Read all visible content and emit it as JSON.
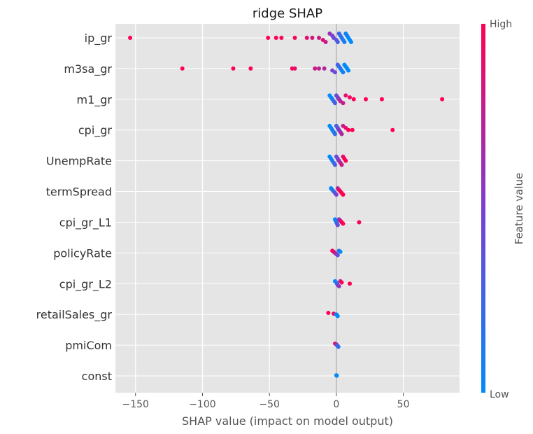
{
  "chart_data": {
    "type": "scatter",
    "subtype": "shap-beeswarm",
    "title": "ridge SHAP",
    "xlabel": "SHAP value (impact on model output)",
    "xlim": [
      -165,
      92
    ],
    "xticks": [
      -150,
      -100,
      -50,
      0,
      50
    ],
    "xtick_labels": [
      "−150",
      "−100",
      "−50",
      "0",
      "50"
    ],
    "colorbar": {
      "label": "Feature value",
      "high": "High",
      "low": "Low",
      "colors": {
        "low": "#008bfb",
        "mid": "#7b3fd1",
        "high": "#ff0052"
      }
    },
    "grid": true,
    "background": "#e5e5e5",
    "features": [
      {
        "name": "ip_gr",
        "points": [
          {
            "x": -154,
            "c": 1.0
          },
          {
            "x": -51,
            "c": 1.0
          },
          {
            "x": -45,
            "c": 1.0
          },
          {
            "x": -41,
            "c": 1.0
          },
          {
            "x": -31,
            "c": 0.95
          },
          {
            "x": -22,
            "c": 0.9
          },
          {
            "x": -18,
            "c": 0.85
          },
          {
            "x": -13,
            "c": 0.8
          },
          {
            "x": -10,
            "c": 0.85
          },
          {
            "x": -8,
            "c": 0.8
          },
          {
            "x": -5,
            "c": 0.6
          },
          {
            "x": -3,
            "c": 0.5
          },
          {
            "x": -2,
            "c": 0.45
          },
          {
            "x": 0,
            "c": 0.35
          },
          {
            "x": 1,
            "c": 0.3
          },
          {
            "x": 2,
            "c": 0.25
          },
          {
            "x": 3,
            "c": 0.2
          },
          {
            "x": 4,
            "c": 0.15
          },
          {
            "x": 5,
            "c": 0.1
          },
          {
            "x": 6,
            "c": 0.1
          },
          {
            "x": 7,
            "c": 0.05
          },
          {
            "x": 8,
            "c": 0.05
          },
          {
            "x": 9,
            "c": 0.0
          },
          {
            "x": 10,
            "c": 0.0
          },
          {
            "x": 11,
            "c": 0.0
          }
        ]
      },
      {
        "name": "m3sa_gr",
        "points": [
          {
            "x": -115,
            "c": 1.0
          },
          {
            "x": -77,
            "c": 1.0
          },
          {
            "x": -64,
            "c": 1.0
          },
          {
            "x": -33,
            "c": 0.95
          },
          {
            "x": -31,
            "c": 0.9
          },
          {
            "x": -16,
            "c": 0.8
          },
          {
            "x": -13,
            "c": 0.75
          },
          {
            "x": -9,
            "c": 0.7
          },
          {
            "x": -3,
            "c": 0.5
          },
          {
            "x": -1,
            "c": 0.4
          },
          {
            "x": 1,
            "c": 0.3
          },
          {
            "x": 2,
            "c": 0.2
          },
          {
            "x": 3,
            "c": 0.15
          },
          {
            "x": 4,
            "c": 0.1
          },
          {
            "x": 5,
            "c": 0.05
          },
          {
            "x": 6,
            "c": 0.0
          },
          {
            "x": 7,
            "c": 0.0
          },
          {
            "x": 8,
            "c": 0.0
          },
          {
            "x": 9,
            "c": 0.0
          }
        ]
      },
      {
        "name": "m1_gr",
        "points": [
          {
            "x": -5,
            "c": 0.0
          },
          {
            "x": -4,
            "c": 0.0
          },
          {
            "x": -3,
            "c": 0.1
          },
          {
            "x": -2,
            "c": 0.2
          },
          {
            "x": -1,
            "c": 0.3
          },
          {
            "x": 0,
            "c": 0.4
          },
          {
            "x": 1,
            "c": 0.5
          },
          {
            "x": 2,
            "c": 0.6
          },
          {
            "x": 3,
            "c": 0.7
          },
          {
            "x": 5,
            "c": 0.8
          },
          {
            "x": 7,
            "c": 0.9
          },
          {
            "x": 10,
            "c": 0.95
          },
          {
            "x": 13,
            "c": 1.0
          },
          {
            "x": 22,
            "c": 1.0
          },
          {
            "x": 34,
            "c": 1.0
          },
          {
            "x": 79,
            "c": 1.0
          }
        ]
      },
      {
        "name": "cpi_gr",
        "points": [
          {
            "x": -5,
            "c": 0.0
          },
          {
            "x": -4,
            "c": 0.0
          },
          {
            "x": -3,
            "c": 0.1
          },
          {
            "x": -2,
            "c": 0.1
          },
          {
            "x": -1,
            "c": 0.2
          },
          {
            "x": 0,
            "c": 0.3
          },
          {
            "x": 1,
            "c": 0.4
          },
          {
            "x": 2,
            "c": 0.5
          },
          {
            "x": 3,
            "c": 0.6
          },
          {
            "x": 4,
            "c": 0.7
          },
          {
            "x": 5,
            "c": 0.8
          },
          {
            "x": 7,
            "c": 0.9
          },
          {
            "x": 9,
            "c": 1.0
          },
          {
            "x": 12,
            "c": 1.0
          },
          {
            "x": 42,
            "c": 1.0
          }
        ]
      },
      {
        "name": "UnempRate",
        "points": [
          {
            "x": -5,
            "c": 0.0
          },
          {
            "x": -4,
            "c": 0.05
          },
          {
            "x": -3,
            "c": 0.1
          },
          {
            "x": -2,
            "c": 0.2
          },
          {
            "x": -1,
            "c": 0.3
          },
          {
            "x": 0,
            "c": 0.4
          },
          {
            "x": 1,
            "c": 0.5
          },
          {
            "x": 2,
            "c": 0.6
          },
          {
            "x": 3,
            "c": 0.7
          },
          {
            "x": 4,
            "c": 0.8
          },
          {
            "x": 5,
            "c": 0.9
          },
          {
            "x": 6,
            "c": 1.0
          },
          {
            "x": 7,
            "c": 1.0
          }
        ]
      },
      {
        "name": "termSpread",
        "points": [
          {
            "x": -4,
            "c": 0.0
          },
          {
            "x": -3,
            "c": 0.1
          },
          {
            "x": -2,
            "c": 0.2
          },
          {
            "x": -1,
            "c": 0.3
          },
          {
            "x": 0,
            "c": 0.5
          },
          {
            "x": 1,
            "c": 0.7
          },
          {
            "x": 2,
            "c": 0.9
          },
          {
            "x": 3,
            "c": 1.0
          },
          {
            "x": 4,
            "c": 1.0
          },
          {
            "x": 5,
            "c": 1.0
          }
        ]
      },
      {
        "name": "cpi_gr_L1",
        "points": [
          {
            "x": -1,
            "c": 0.0
          },
          {
            "x": -0.5,
            "c": 0.05
          },
          {
            "x": 0,
            "c": 0.1
          },
          {
            "x": 0.5,
            "c": 0.2
          },
          {
            "x": 1,
            "c": 0.4
          },
          {
            "x": 2,
            "c": 0.6
          },
          {
            "x": 3,
            "c": 0.8
          },
          {
            "x": 4,
            "c": 1.0
          },
          {
            "x": 5,
            "c": 1.0
          },
          {
            "x": 17,
            "c": 1.0
          }
        ]
      },
      {
        "name": "policyRate",
        "points": [
          {
            "x": -3,
            "c": 1.0
          },
          {
            "x": -2,
            "c": 0.9
          },
          {
            "x": -1,
            "c": 0.8
          },
          {
            "x": 0,
            "c": 0.6
          },
          {
            "x": 1,
            "c": 0.4
          },
          {
            "x": 2,
            "c": 0.2
          },
          {
            "x": 3,
            "c": 0.0
          }
        ]
      },
      {
        "name": "cpi_gr_L2",
        "points": [
          {
            "x": -1,
            "c": 0.0
          },
          {
            "x": 0,
            "c": 0.1
          },
          {
            "x": 0.5,
            "c": 0.2
          },
          {
            "x": 1,
            "c": 0.4
          },
          {
            "x": 2,
            "c": 0.6
          },
          {
            "x": 3,
            "c": 0.8
          },
          {
            "x": 4,
            "c": 1.0
          },
          {
            "x": 10,
            "c": 1.0
          }
        ]
      },
      {
        "name": "retailSales_gr",
        "points": [
          {
            "x": -6,
            "c": 1.0
          },
          {
            "x": -2,
            "c": 0.95
          },
          {
            "x": 0,
            "c": 0.0
          },
          {
            "x": 0.5,
            "c": 0.0
          },
          {
            "x": 1,
            "c": 0.0
          }
        ]
      },
      {
        "name": "pmiCom",
        "points": [
          {
            "x": -1,
            "c": 0.9
          },
          {
            "x": 0,
            "c": 0.7
          },
          {
            "x": 0.5,
            "c": 0.5
          },
          {
            "x": 1,
            "c": 0.3
          },
          {
            "x": 1.5,
            "c": 0.2
          }
        ]
      },
      {
        "name": "const",
        "points": [
          {
            "x": 0,
            "c": 0.0
          },
          {
            "x": 0.3,
            "c": 0.0
          }
        ]
      }
    ]
  }
}
